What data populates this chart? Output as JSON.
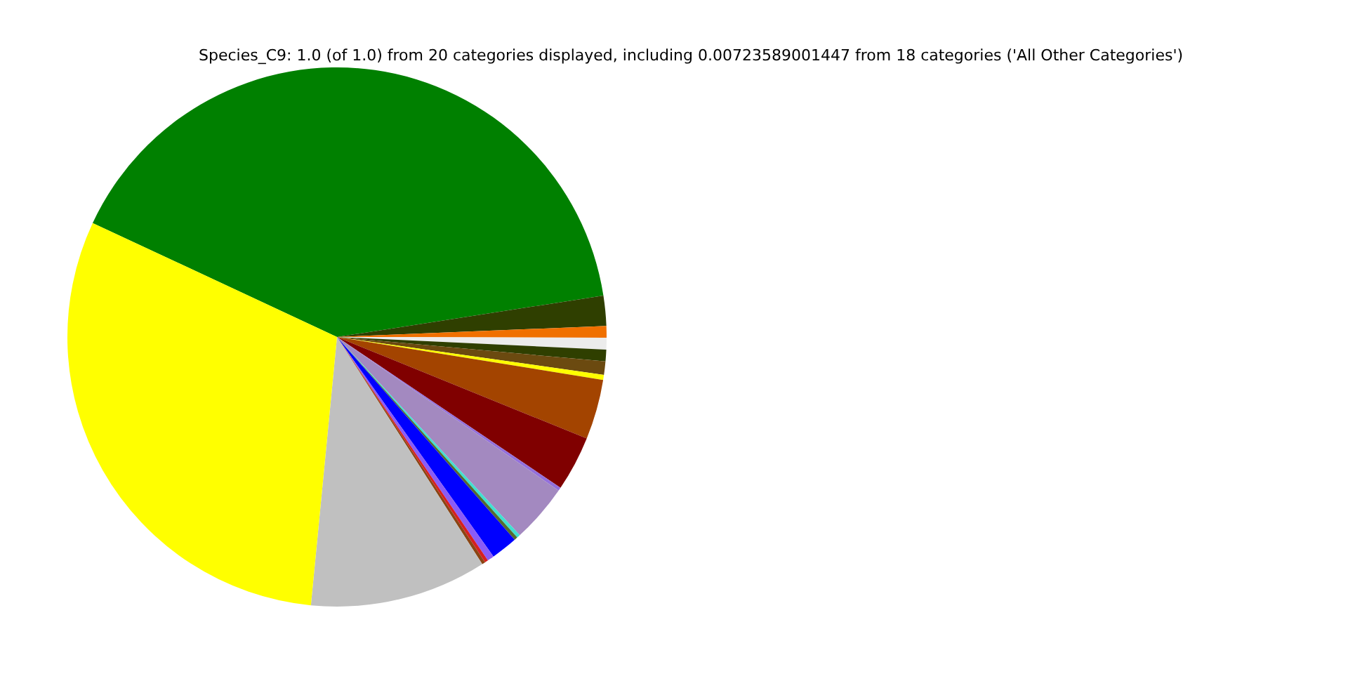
{
  "chart_data": {
    "type": "pie",
    "title": "Species_C9: 1.0 (of 1.0) from 20 categories displayed, including 0.00723589001447 from 18 categories ('All Other Categories')",
    "categories": [
      null,
      null,
      null,
      null,
      null,
      null,
      null,
      null,
      null,
      null,
      null,
      null,
      null,
      null,
      null,
      null,
      null,
      null,
      null
    ],
    "values": [
      40.6,
      1.8,
      0.7,
      0.7,
      0.7,
      0.8,
      0.3,
      3.6,
      3.3,
      0.2,
      3.5,
      0.2,
      0.2,
      1.6,
      0.4,
      0.2,
      0.2,
      10.6,
      30.4
    ],
    "colors": [
      "#008000",
      "#2f3f00",
      "#f07000",
      "#ececec",
      "#2f3f00",
      "#6b4a10",
      "#ffff00",
      "#a34400",
      "#800000",
      "#9370db",
      "#a389c0",
      "#40e0d0",
      "#556b2f",
      "#0000ff",
      "#8a5cf6",
      "#d62020",
      "#8b4513",
      "#c0c0c0",
      "#ffff00"
    ],
    "legend": false
  }
}
